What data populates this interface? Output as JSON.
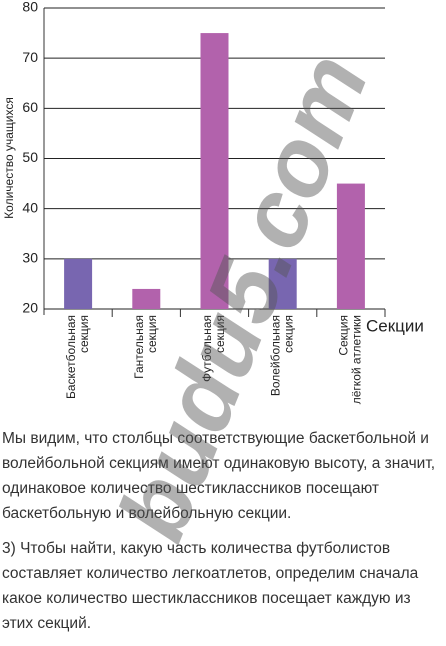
{
  "chart_data": {
    "type": "bar",
    "y_label": "Количество учащихся",
    "x_label": "Секции",
    "categories": [
      [
        "Баскетбольная",
        "секция"
      ],
      [
        "Гантельная",
        "секция"
      ],
      [
        "Футбольная",
        "секция"
      ],
      [
        "Волейбольная",
        "секция"
      ],
      [
        "Секция",
        "лёгкой атлетики"
      ]
    ],
    "values": [
      30,
      24,
      75,
      30,
      45
    ],
    "colors": [
      "#7866b0",
      "#b262ac",
      "#b262ac",
      "#7866b0",
      "#b262ac"
    ],
    "ylim": [
      20,
      80
    ],
    "yticks": [
      20,
      30,
      40,
      50,
      60,
      70,
      80
    ],
    "grid": true
  },
  "watermark": "budu5.com",
  "paragraphs": [
    "Мы видим, что столбцы соответствующие баскетбольной и волейбольной секциям имеют одинаковую высоту, а значит, одинаковое количество шестиклассников посещают баскетбольную и волейбольную секции.",
    "3) Чтобы найти, какую часть количества футболистов составляет количество легкоатлетов, определим сначала какое количество шестиклассников посещает каждую из этих секций."
  ]
}
